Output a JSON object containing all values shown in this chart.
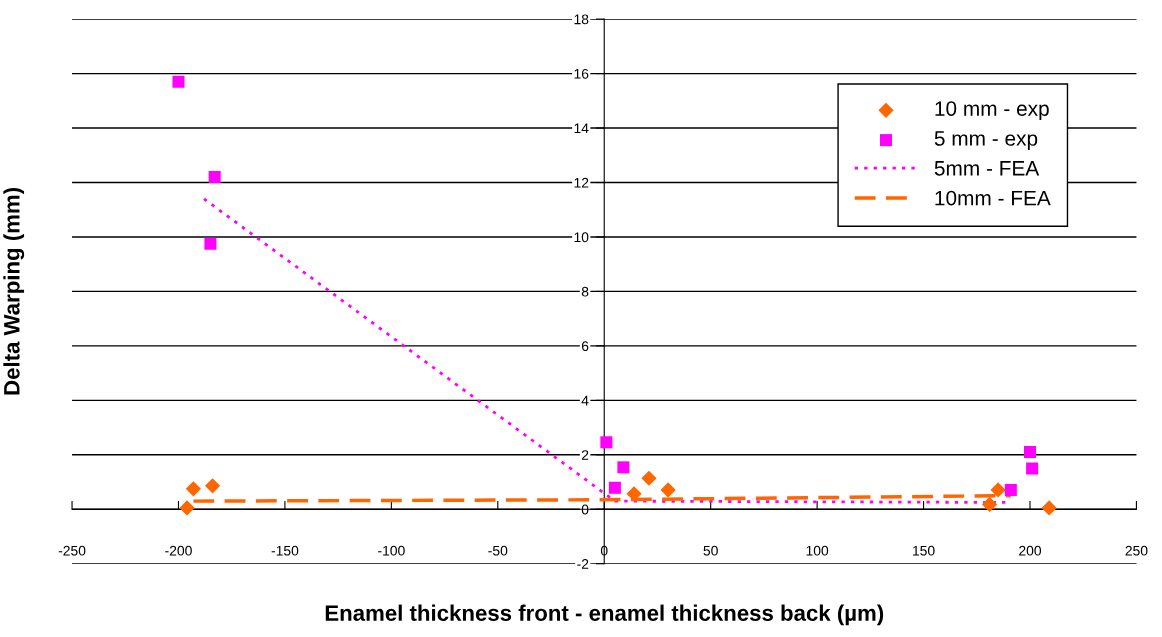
{
  "chart_data": {
    "type": "scatter",
    "xlabel": "Enamel thickness front - enamel thickness back (µm)",
    "ylabel": "Delta Warping (mm)",
    "xlim": [
      -250,
      250
    ],
    "xticks": [
      -250,
      -200,
      -150,
      -100,
      -50,
      0,
      50,
      100,
      150,
      200,
      250
    ],
    "ylim": [
      -2,
      18
    ],
    "yticks": [
      -2,
      0,
      2,
      4,
      6,
      8,
      10,
      12,
      14,
      16,
      18
    ],
    "grid": "y",
    "legend": "top right",
    "series": [
      {
        "name": "10 mm - exp",
        "marker": "diamond",
        "color": "#ff6600",
        "x": [
          -196,
          -193,
          -184,
          14,
          21,
          30,
          181,
          185,
          209
        ],
        "values": [
          0.05,
          0.75,
          0.86,
          0.57,
          1.14,
          0.71,
          0.18,
          0.71,
          0.05
        ]
      },
      {
        "name": "5 mm - exp",
        "marker": "square",
        "color": "#ff00ff",
        "x": [
          -200,
          -185,
          -183,
          1,
          5,
          9,
          191,
          200,
          201
        ],
        "values": [
          15.7,
          9.75,
          12.2,
          2.46,
          0.79,
          1.54,
          0.71,
          2.1,
          1.5
        ]
      },
      {
        "name": "5mm - FEA",
        "type": "line",
        "line_style": "dotted",
        "color": "#ff00ff",
        "x": [
          -188,
          5,
          190
        ],
        "values": [
          11.4,
          0.3,
          0.25
        ]
      },
      {
        "name": "10mm - FEA",
        "type": "line",
        "line_style": "dashed",
        "color": "#ff6600",
        "x": [
          -193,
          0,
          191
        ],
        "values": [
          0.3,
          0.35,
          0.5
        ]
      }
    ]
  }
}
